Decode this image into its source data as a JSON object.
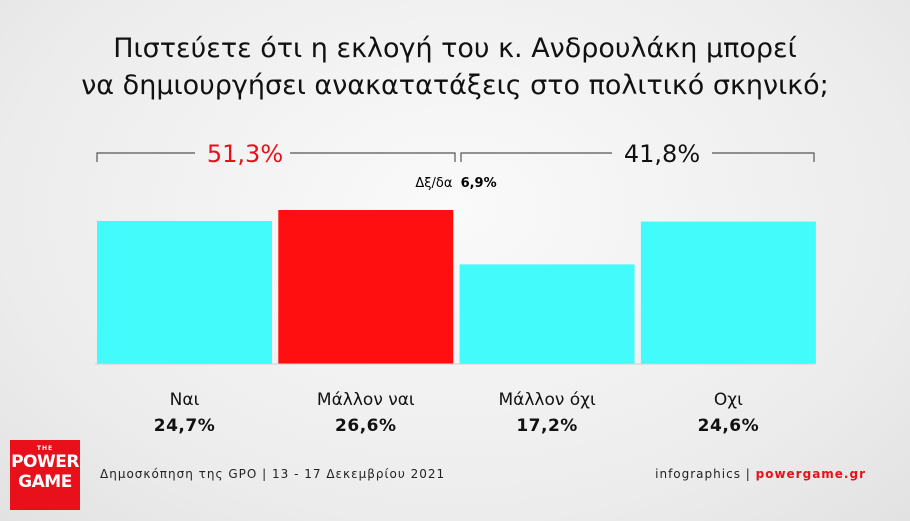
{
  "title": {
    "line1": "Πιστεύετε ότι η εκλογή του κ. Ανδρουλάκη μπορεί",
    "line2": "να δημιουργήσει ανακατατάξεις στο πολιτικό σκηνικό;"
  },
  "groups": {
    "positive": {
      "value": "51,3%",
      "color": "#e8101b"
    },
    "negative": {
      "value": "41,8%",
      "color": "#111111"
    }
  },
  "dkna": {
    "label": "Δξ/δα",
    "value": "6,9%"
  },
  "chart_data": {
    "type": "bar",
    "title": "Πιστεύετε ότι η εκλογή του κ. Ανδρουλάκη μπορεί να δημιουργήσει ανακατατάξεις στο πολιτικό σκηνικό;",
    "categories": [
      "Ναι",
      "Μάλλον ναι",
      "Μάλλον όχι",
      "Οχι"
    ],
    "values": [
      24.7,
      26.6,
      17.2,
      24.6
    ],
    "value_labels": [
      "24,7%",
      "26,6%",
      "17,2%",
      "24,6%"
    ],
    "colors": [
      "#44fbfb",
      "#ff0f0f",
      "#44fbfb",
      "#44fbfb"
    ],
    "ylim": [
      0,
      26.6
    ],
    "grid": false,
    "legend": "none"
  },
  "footer": {
    "source": "Δημοσκόπηση της GPO | 13 - 17 Δεκεμβρίου 2021",
    "credit_prefix": "infographics | ",
    "site": "powergame.gr"
  },
  "logo": {
    "the": "THE",
    "power": "POWER",
    "game": "GAME"
  }
}
